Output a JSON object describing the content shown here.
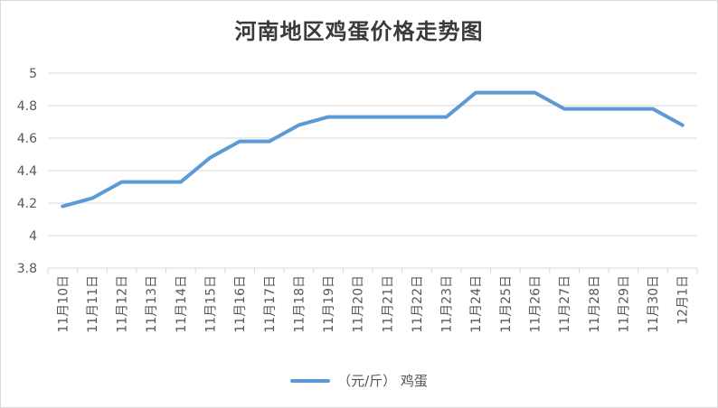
{
  "chart_data": {
    "type": "line",
    "title": "河南地区鸡蛋价格走势图",
    "categories": [
      "11月10日",
      "11月11日",
      "11月12日",
      "11月13日",
      "11月14日",
      "11月15日",
      "11月16日",
      "11月17日",
      "11月18日",
      "11月19日",
      "11月20日",
      "11月21日",
      "11月22日",
      "11月23日",
      "11月24日",
      "11月25日",
      "11月26日",
      "11月27日",
      "11月28日",
      "11月29日",
      "11月30日",
      "12月1日"
    ],
    "series": [
      {
        "name": "（元/斤） 鸡蛋",
        "color": "#5b9bd5",
        "values": [
          4.18,
          4.23,
          4.33,
          4.33,
          4.33,
          4.48,
          4.58,
          4.58,
          4.68,
          4.73,
          4.73,
          4.73,
          4.73,
          4.73,
          4.88,
          4.88,
          4.88,
          4.78,
          4.78,
          4.78,
          4.78,
          4.68
        ]
      }
    ],
    "y_ticks": [
      "3.8",
      "4",
      "4.2",
      "4.4",
      "4.6",
      "4.8",
      "5"
    ],
    "ylim": [
      3.8,
      5.0
    ],
    "grid": true,
    "legend_position": "bottom",
    "xlabel": "",
    "ylabel": ""
  },
  "colors": {
    "line": "#5b9bd5",
    "grid": "#d9d9d9",
    "axis_text": "#595959"
  }
}
